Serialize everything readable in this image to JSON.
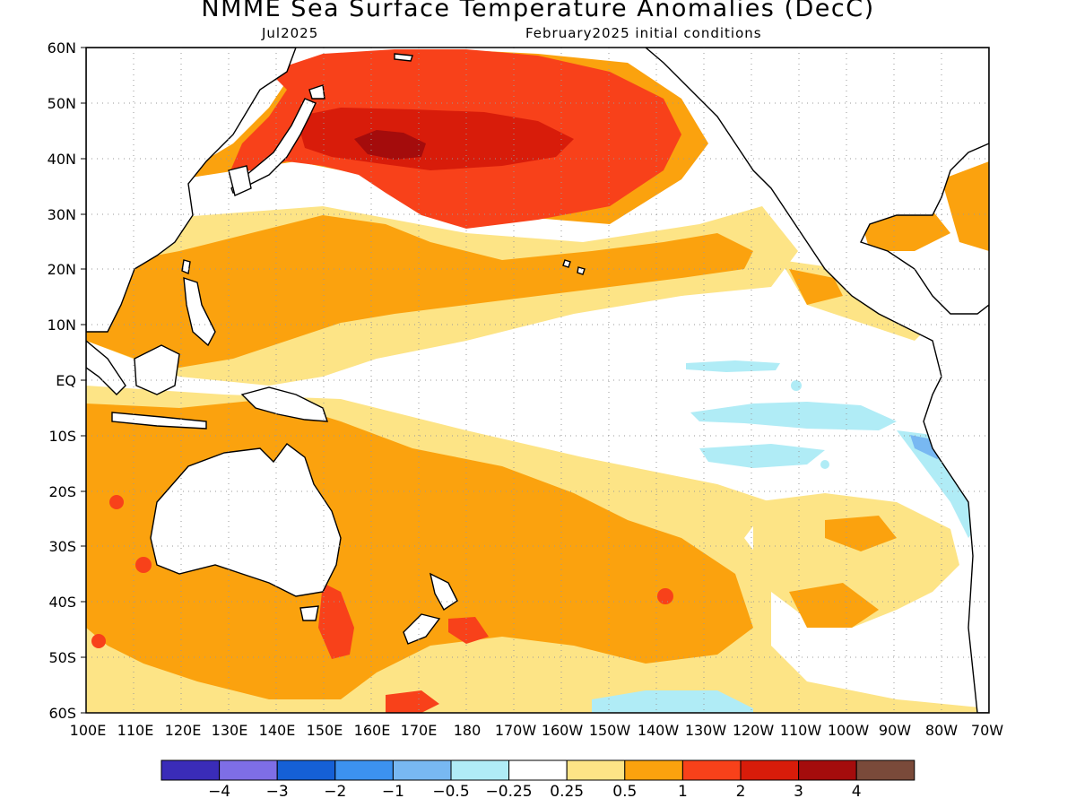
{
  "header": {
    "title": "NMME Sea Surface Temperature Anomalies (DecC)",
    "target_month": "Jul2025",
    "initial_conditions": "February2025 initial conditions"
  },
  "axes": {
    "lat_labels": [
      "60N",
      "50N",
      "40N",
      "30N",
      "20N",
      "10N",
      "EQ",
      "10S",
      "20S",
      "30S",
      "40S",
      "50S",
      "60S"
    ],
    "lon_labels": [
      "100E",
      "110E",
      "120E",
      "130E",
      "140E",
      "150E",
      "160E",
      "170E",
      "180",
      "170W",
      "160W",
      "150W",
      "140W",
      "130W",
      "120W",
      "110W",
      "100W",
      "90W",
      "80W",
      "70W"
    ]
  },
  "colorbar": {
    "colors": [
      "#3a2cb8",
      "#7e6ee6",
      "#1560d6",
      "#3c92f0",
      "#78b8f2",
      "#b0ecf6",
      "#ffffff",
      "#fde486",
      "#fba20e",
      "#f8411a",
      "#d81c0a",
      "#a40c0c",
      "#7a4a3a"
    ],
    "labels": [
      "−4",
      "−3",
      "−2",
      "−1",
      "−0.5",
      "−0.25",
      "0.25",
      "0.5",
      "1",
      "2",
      "3",
      "4"
    ]
  },
  "map": {
    "grid": "dotted",
    "region_lon": [
      100,
      290
    ],
    "region_lat": [
      -60,
      60
    ],
    "anomaly_palette": {
      "weak_warm": "#fde486",
      "moderate_warm": "#fba20e",
      "strong_warm": "#f8411a",
      "very_strong_warm": "#d81c0a",
      "extreme_warm": "#a40c0c",
      "weak_cool": "#b0ecf6",
      "moderate_cool": "#78b8f2",
      "land": "#ffffff",
      "coast": "#000000"
    }
  }
}
